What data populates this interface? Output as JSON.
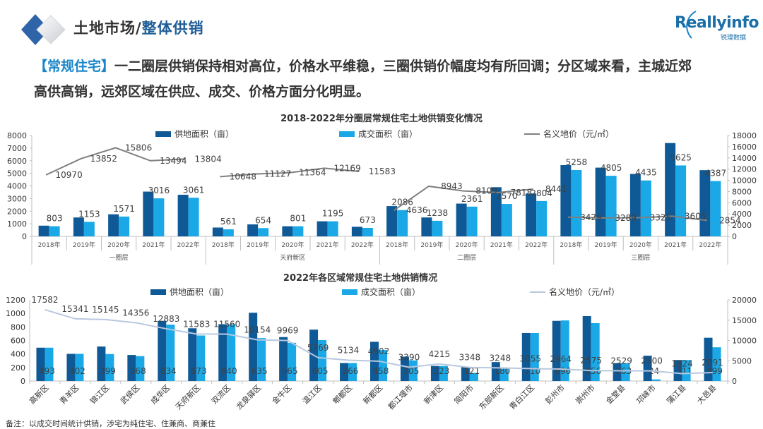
{
  "header": {
    "title_part1": "土地市场/",
    "title_part2": "整体供销",
    "brand_name": "Reallyinfo",
    "brand_sub": "锐理数据"
  },
  "summary": {
    "tag": "【常规住宅】",
    "line1": "一二圈层供销保持相对高位，价格水平维稳，三圈供销价幅度均有所回调；分区域来看，主城近郊",
    "line2": "高供高销，远郊区域在供应、成交、价格方面分化明显。"
  },
  "colors": {
    "supply": "#0f5a96",
    "deal": "#1aa9e6",
    "price_top": "#7f7f7f",
    "price_bottom": "#b8c8e0",
    "accent": "#1e5d96"
  },
  "note": "备注：以成交时间统计供销，涉宅为纯住宅、住兼商、商兼住",
  "chart_data": [
    {
      "type": "bar",
      "title": "2018-2022年分圈层常规住宅土地供销变化情况",
      "legend": [
        "供地面积（亩）",
        "成交面积（亩）",
        "名义地价（元/㎡）"
      ],
      "legend_placement": "top",
      "groups": [
        "一圈层",
        "天府新区",
        "二圈层",
        "三圈层"
      ],
      "categories": [
        "2018年",
        "2019年",
        "2020年",
        "2021年",
        "2022年",
        "2018年",
        "2019年",
        "2020年",
        "2021年",
        "2022年",
        "2018年",
        "2019年",
        "2020年",
        "2021年",
        "2022年",
        "2018年",
        "2019年",
        "2020年",
        "2021年",
        "2022年"
      ],
      "series": [
        {
          "name": "供地面积（亩）",
          "axis": "left",
          "values": [
            850,
            1500,
            1750,
            3550,
            3300,
            700,
            950,
            801,
            1195,
            760,
            2400,
            1500,
            2600,
            3900,
            3400,
            5650,
            5450,
            4950,
            7400,
            5250
          ]
        },
        {
          "name": "成交面积（亩）",
          "axis": "left",
          "values": [
            803,
            1153,
            1571,
            3016,
            3061,
            561,
            654,
            801,
            1195,
            673,
            2086,
            1238,
            2361,
            2570,
            2804,
            5258,
            4805,
            4435,
            5625,
            4387
          ]
        },
        {
          "name": "名义地价（元/㎡）",
          "axis": "right",
          "type": "line",
          "values": [
            10970,
            13852,
            15806,
            13494,
            13804,
            10648,
            11127,
            11364,
            12169,
            11583,
            4636,
            8943,
            8109,
            7818,
            8441,
            3429,
            3289,
            3325,
            3605,
            2854
          ]
        }
      ],
      "ylim_left": [
        0,
        8000
      ],
      "yticks_left": [
        0,
        1000,
        2000,
        3000,
        4000,
        5000,
        6000,
        7000,
        8000
      ],
      "ylim_right": [
        0,
        18000
      ],
      "yticks_right": [
        0,
        2000,
        4000,
        6000,
        8000,
        10000,
        12000,
        14000,
        16000,
        18000
      ]
    },
    {
      "type": "bar",
      "title": "2022年各区域常规住宅土地供销情况",
      "legend": [
        "供地面积（亩）",
        "成交面积（亩）",
        "名义地价（元/㎡）"
      ],
      "legend_placement": "top",
      "categories": [
        "高新区",
        "青羊区",
        "锦江区",
        "武侯区",
        "成华区",
        "天府新区",
        "双流区",
        "龙泉驿区",
        "金牛区",
        "温江区",
        "郫都区",
        "新都区",
        "都江堰市",
        "新津区",
        "简阳市",
        "东部新区",
        "青白江区",
        "彭州市",
        "崇州市",
        "金堂县",
        "邛崃市",
        "蒲江县",
        "大邑县"
      ],
      "series": [
        {
          "name": "供地面积（亩）",
          "axis": "left",
          "values": [
            493,
            402,
            510,
            385,
            890,
            780,
            840,
            1010,
            650,
            760,
            266,
            580,
            360,
            223,
            205,
            280,
            710,
            890,
            960,
            263,
            375,
            311,
            640
          ]
        },
        {
          "name": "成交面积（亩）",
          "axis": "left",
          "values": [
            493,
            402,
            399,
            368,
            834,
            673,
            840,
            635,
            565,
            605,
            266,
            458,
            305,
            223,
            121,
            180,
            710,
            896,
            856,
            263,
            24,
            311,
            499
          ]
        },
        {
          "name": "名义地价（元/㎡）",
          "axis": "right",
          "type": "line",
          "values": [
            17582,
            15341,
            15145,
            14356,
            12883,
            11583,
            11560,
            10154,
            9969,
            5769,
            5134,
            4902,
            3390,
            4215,
            3348,
            3248,
            3055,
            2964,
            2575,
            2529,
            2500,
            1824,
            2091
          ]
        }
      ],
      "ylim_left": [
        0,
        1200
      ],
      "yticks_left": [
        0,
        200,
        400,
        600,
        800,
        1000,
        1200
      ],
      "ylim_right": [
        0,
        20000
      ],
      "yticks_right": [
        0,
        5000,
        10000,
        15000,
        20000
      ]
    }
  ]
}
